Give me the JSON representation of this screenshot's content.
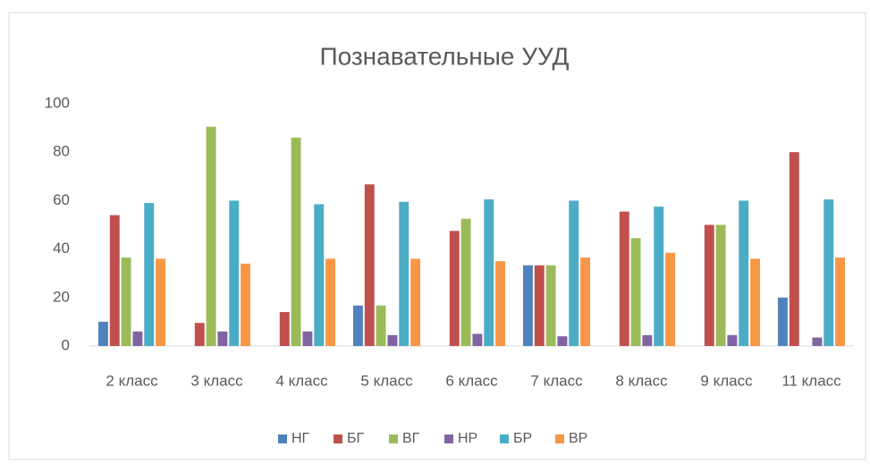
{
  "chart_data": {
    "type": "bar",
    "title": "Познавательные УУД",
    "categories": [
      "2 класс",
      "3 класс",
      "4 класс",
      "5 класс",
      "6 класс",
      "7 класс",
      "8 класс",
      "9 класс",
      "11 класс"
    ],
    "series": [
      {
        "name": "НГ",
        "color": "#4f81bd",
        "values": [
          10,
          0,
          0,
          16.7,
          0,
          33.3,
          0,
          0,
          20
        ]
      },
      {
        "name": "БГ",
        "color": "#c0504d",
        "values": [
          54,
          9.5,
          14,
          66.7,
          47.5,
          33.3,
          55.5,
          50,
          80
        ]
      },
      {
        "name": "ВГ",
        "color": "#9bbb59",
        "values": [
          36.5,
          90.5,
          86,
          16.7,
          52.5,
          33.3,
          44.5,
          50,
          0
        ]
      },
      {
        "name": "НР",
        "color": "#8064a2",
        "values": [
          6,
          6,
          6,
          4.5,
          5,
          4,
          4.5,
          4.5,
          3.5
        ]
      },
      {
        "name": "БР",
        "color": "#4bacc6",
        "values": [
          59,
          60,
          58.5,
          59.5,
          60.5,
          60,
          57.5,
          60,
          60.5
        ]
      },
      {
        "name": "ВР",
        "color": "#f79646",
        "values": [
          36,
          34,
          36,
          36,
          35,
          36.5,
          38.5,
          36,
          36.5
        ]
      }
    ],
    "ylim": [
      0,
      100
    ],
    "yticks": [
      0,
      20,
      40,
      60,
      80,
      100
    ],
    "grid": false,
    "legend": "bottom"
  }
}
